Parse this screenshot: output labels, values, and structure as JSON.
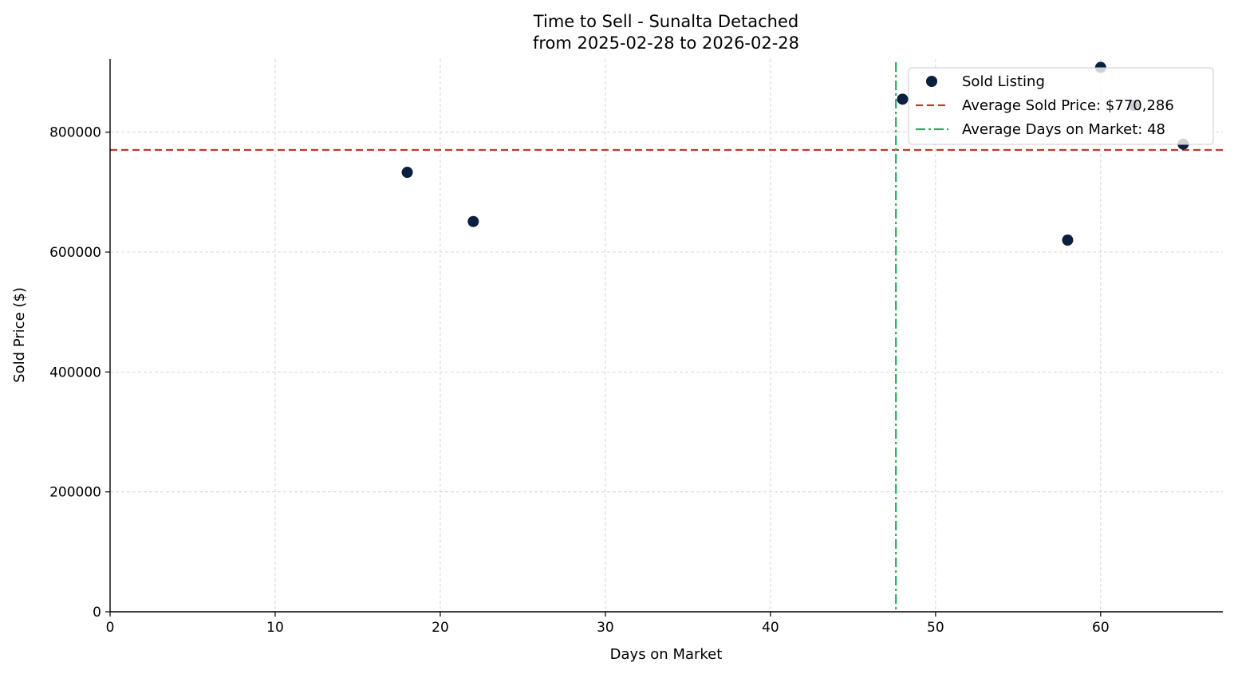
{
  "chart_data": {
    "type": "scatter",
    "title": "Time to Sell - Sunalta Detached",
    "subtitle": "from 2025-02-28 to 2026-02-28",
    "xlabel": "Days on Market",
    "ylabel": "Sold Price ($)",
    "xlim": [
      0,
      67.4
    ],
    "ylim": [
      0,
      922000
    ],
    "xticks": [
      0,
      10,
      20,
      30,
      40,
      50,
      60
    ],
    "yticks": [
      0,
      200000,
      400000,
      600000,
      800000
    ],
    "grid": true,
    "legend_placement": "top-right",
    "series": [
      {
        "name": "Sold Listing",
        "color": "#0b1f3f",
        "points": [
          {
            "x": 18,
            "y": 733000
          },
          {
            "x": 22,
            "y": 651000
          },
          {
            "x": 48,
            "y": 855000
          },
          {
            "x": 58,
            "y": 620000
          },
          {
            "x": 60,
            "y": 908000
          },
          {
            "x": 62,
            "y": 845000
          },
          {
            "x": 65,
            "y": 780000
          }
        ]
      }
    ],
    "reference_lines": [
      {
        "name": "Average Sold Price: $770,286",
        "orientation": "horizontal",
        "value": 770286,
        "color": "#c0392b",
        "style": "dashed"
      },
      {
        "name": "Average Days on Market: 48",
        "orientation": "vertical",
        "value": 47.6,
        "color": "#27ae60",
        "style": "dashdot"
      }
    ]
  }
}
